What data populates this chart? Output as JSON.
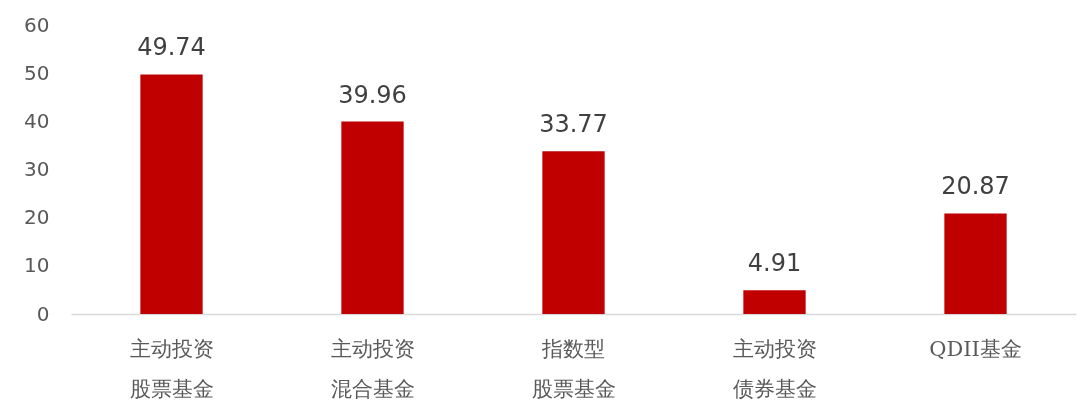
{
  "chart_data": {
    "type": "bar",
    "categories": [
      "主动投资股票基金",
      "主动投资混合基金",
      "指数型股票基金",
      "主动投资债券基金",
      "QDII基金"
    ],
    "values": [
      49.74,
      39.96,
      33.77,
      4.91,
      20.87
    ],
    "color": "#c00000",
    "ylim": [
      0,
      60
    ],
    "yticks": [
      0,
      10,
      20,
      30,
      40,
      50,
      60
    ],
    "data_labels": true
  }
}
